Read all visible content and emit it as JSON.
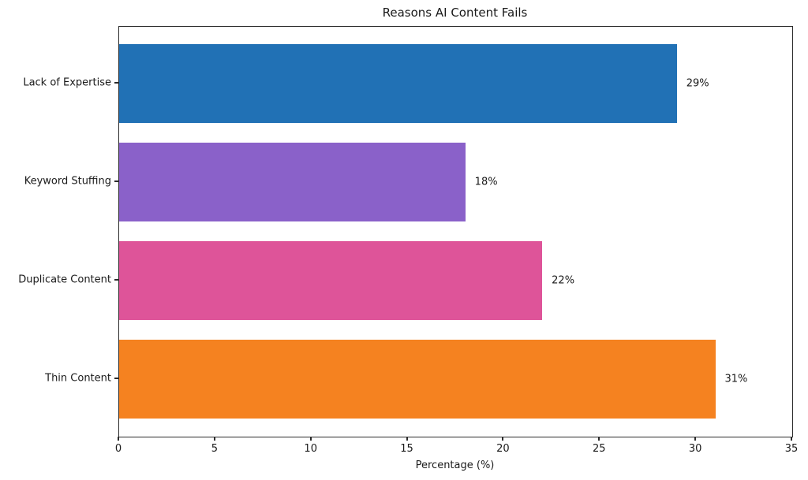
{
  "chart_data": {
    "type": "bar",
    "orientation": "horizontal",
    "title": "Reasons AI Content Fails",
    "xlabel": "Percentage (%)",
    "ylabel": "",
    "categories": [
      "Lack of Expertise",
      "Keyword Stuffing",
      "Duplicate Content",
      "Thin Content"
    ],
    "values": [
      29,
      18,
      22,
      31
    ],
    "value_labels": [
      "29%",
      "18%",
      "22%",
      "31%"
    ],
    "bar_colors": [
      "#2171b5",
      "#8a61c9",
      "#de5499",
      "#f58220"
    ],
    "xlim": [
      0,
      35
    ],
    "x_ticks": [
      0,
      5,
      10,
      15,
      20,
      25,
      30,
      35
    ],
    "grid": false,
    "legend": null,
    "colors": {
      "background": "#ffffff",
      "text": "#1a1a1a",
      "spine": "#2b2b2b"
    }
  }
}
